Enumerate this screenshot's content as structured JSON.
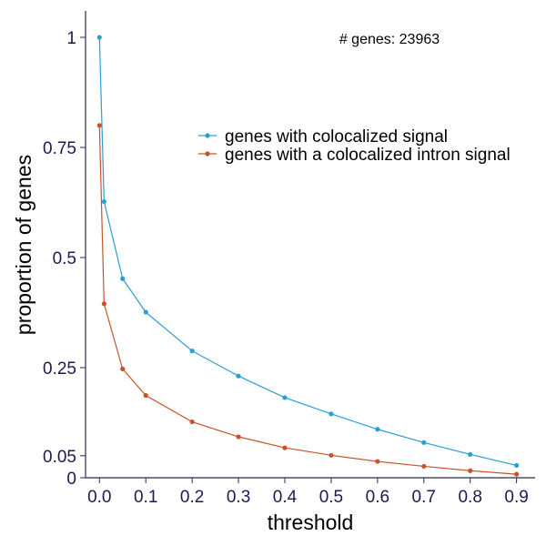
{
  "chart_data": {
    "type": "line",
    "title": "",
    "xlabel": "threshold",
    "ylabel": "proportion of genes",
    "annotation": "# genes: 23963",
    "xlim": [
      -0.03,
      0.94
    ],
    "ylim": [
      0,
      1.06
    ],
    "x_ticks": [
      0.0,
      0.1,
      0.2,
      0.3,
      0.4,
      0.5,
      0.6,
      0.7,
      0.8,
      0.9
    ],
    "x_tick_labels": [
      "0.0",
      "0.1",
      "0.2",
      "0.3",
      "0.4",
      "0.5",
      "0.6",
      "0.7",
      "0.8",
      "0.9"
    ],
    "y_ticks": [
      0,
      0.05,
      0.25,
      0.5,
      0.75,
      1
    ],
    "y_tick_labels": [
      "0",
      "0.05",
      "0.25",
      "0.5",
      "0.75",
      "1"
    ],
    "grid": false,
    "legend_position": "top-right",
    "x": [
      0.0,
      0.01,
      0.05,
      0.1,
      0.2,
      0.3,
      0.4,
      0.5,
      0.6,
      0.7,
      0.8,
      0.9
    ],
    "series": [
      {
        "name": "genes with colocalized signal",
        "color": "#2a9fd0",
        "values": [
          1.0,
          0.627,
          0.452,
          0.376,
          0.288,
          0.231,
          0.182,
          0.145,
          0.11,
          0.08,
          0.053,
          0.028
        ]
      },
      {
        "name": "genes with a colocalized intron signal",
        "color": "#c8532a",
        "values": [
          0.8,
          0.395,
          0.247,
          0.187,
          0.127,
          0.093,
          0.068,
          0.051,
          0.037,
          0.026,
          0.016,
          0.008
        ]
      }
    ]
  }
}
